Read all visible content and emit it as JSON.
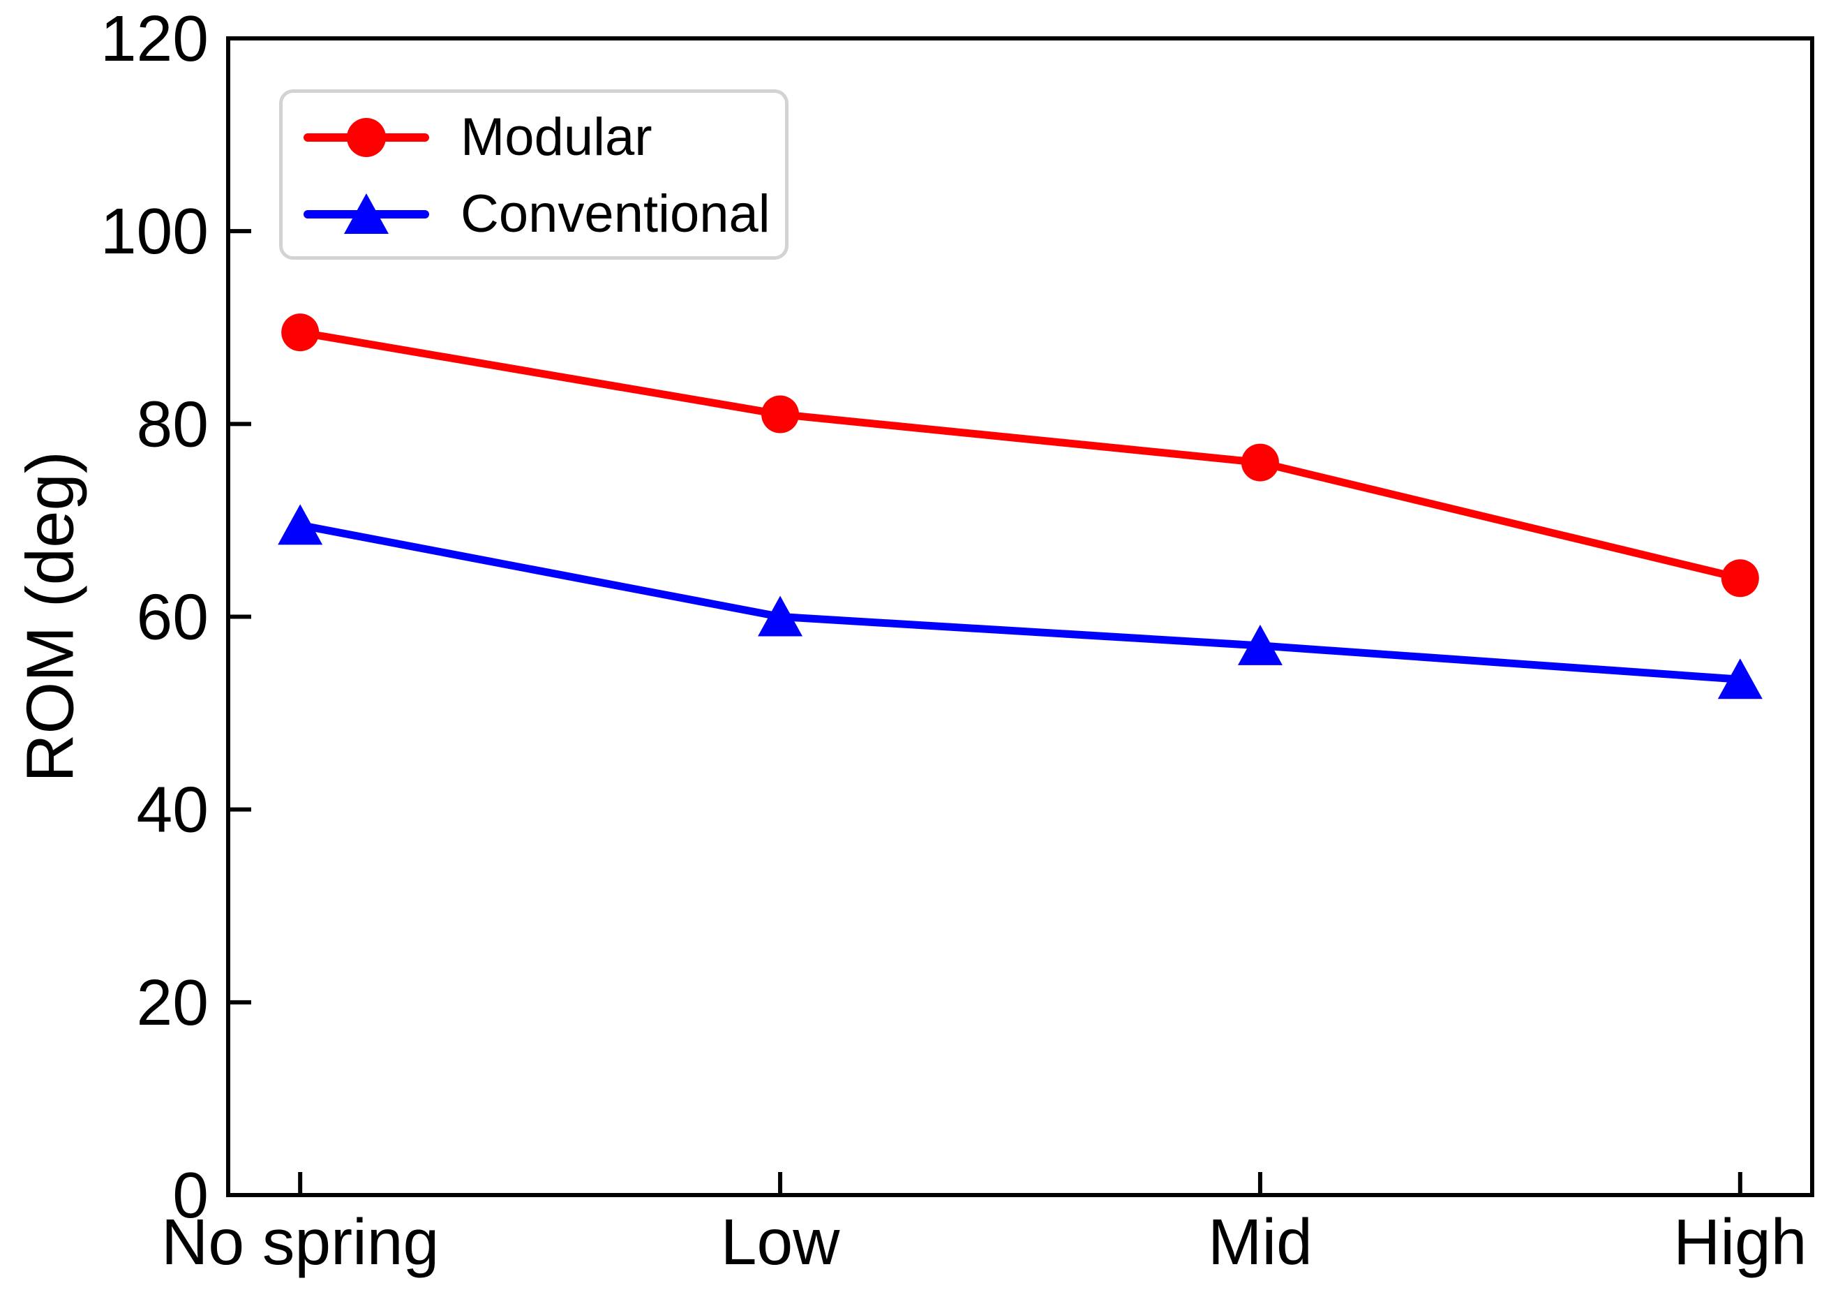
{
  "figure": {
    "background": "#ffffff",
    "axis_color": "#000000"
  },
  "chart_data": {
    "type": "line",
    "title": "",
    "xlabel": "",
    "ylabel": "ROM (deg)",
    "categories": [
      "No spring",
      "Low",
      "Mid",
      "High"
    ],
    "series": [
      {
        "name": "Modular",
        "color": "#ff0000",
        "marker": "circle",
        "values": [
          89.5,
          81,
          76,
          64
        ]
      },
      {
        "name": "Conventional",
        "color": "#0000ff",
        "marker": "triangle-up",
        "values": [
          69.5,
          60,
          57,
          53.5
        ]
      }
    ],
    "ylim": [
      0,
      120
    ],
    "yticks": [
      0,
      20,
      40,
      60,
      80,
      100,
      120
    ],
    "grid": false,
    "legend_position": "upper-left",
    "tick_direction": "in"
  },
  "legend": {
    "items": [
      {
        "label": "Modular",
        "color": "#ff0000",
        "marker": "circle"
      },
      {
        "label": "Conventional",
        "color": "#0000ff",
        "marker": "triangle-up"
      }
    ]
  }
}
